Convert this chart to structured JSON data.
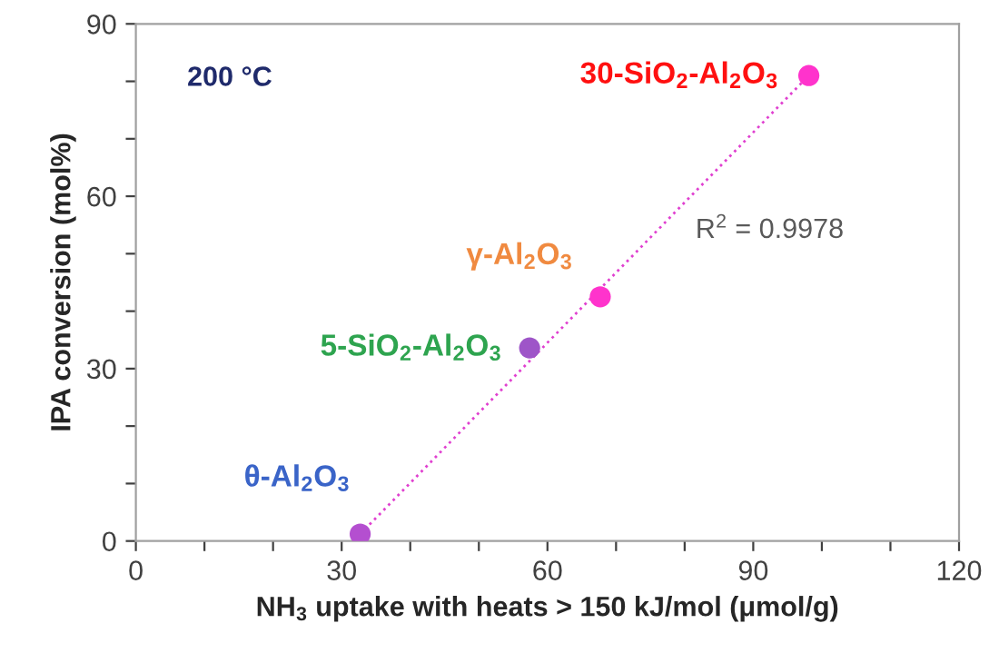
{
  "chart_data": {
    "type": "scatter",
    "xlabel": "NH$_{3}$ uptake with heats > 150 kJ/mol (μmol/g)",
    "ylabel": "IPA conversion (mol%)",
    "series": [
      {
        "marker": "circle",
        "colors": [
          "#b44fd0",
          "#9e55c8",
          "#ff33cc",
          "#ff33cc"
        ],
        "x": [
          32.7,
          57.4,
          67.7,
          98.1
        ],
        "values": [
          1.2,
          33.6,
          42.5,
          81.0
        ]
      },
      {
        "type": "line",
        "color": "#e040d0",
        "line_style": "dotted",
        "x": [
          32.7,
          98.1
        ],
        "values": [
          1.2,
          81.0
        ]
      }
    ],
    "annotations": [
      "200 °C",
      {
        "text": "30-SiO$_{2}$-Al$_{2}$O$_{3}$",
        "x": 98.1,
        "y": 81.0
      },
      {
        "text": "γ-Al$_{2}$O$_{3}$",
        "x": 67.7,
        "y": 42.5
      },
      {
        "text": "5-SiO$_{2}$-Al$_{2}$O$_{3}$",
        "x": 57.4,
        "y": 33.6
      },
      {
        "text": "θ-Al$_{2}$O$_{3}$",
        "x": 32.7,
        "y": 1.2
      },
      "R$^{2}$ = 0.9978"
    ],
    "xlim": [
      0,
      120
    ],
    "ylim": [
      0,
      90
    ],
    "xticks": [
      0,
      {
        "value": 10,
        "label": null
      },
      {
        "value": 20,
        "label": null
      },
      30,
      {
        "value": 40,
        "label": null
      },
      {
        "value": 50,
        "label": null
      },
      60,
      {
        "value": 70,
        "label": null
      },
      {
        "value": 80,
        "label": null
      },
      90,
      {
        "value": 100,
        "label": null
      },
      {
        "value": 110,
        "label": null
      },
      120
    ],
    "yticks": [
      0,
      {
        "value": 10,
        "label": null
      },
      {
        "value": 20,
        "label": null
      },
      30,
      {
        "value": 40,
        "label": null
      },
      {
        "value": 50,
        "label": null
      },
      60,
      {
        "value": 70,
        "label": null
      },
      {
        "value": 80,
        "label": null
      },
      90
    ],
    "grid": false,
    "legend": false
  }
}
